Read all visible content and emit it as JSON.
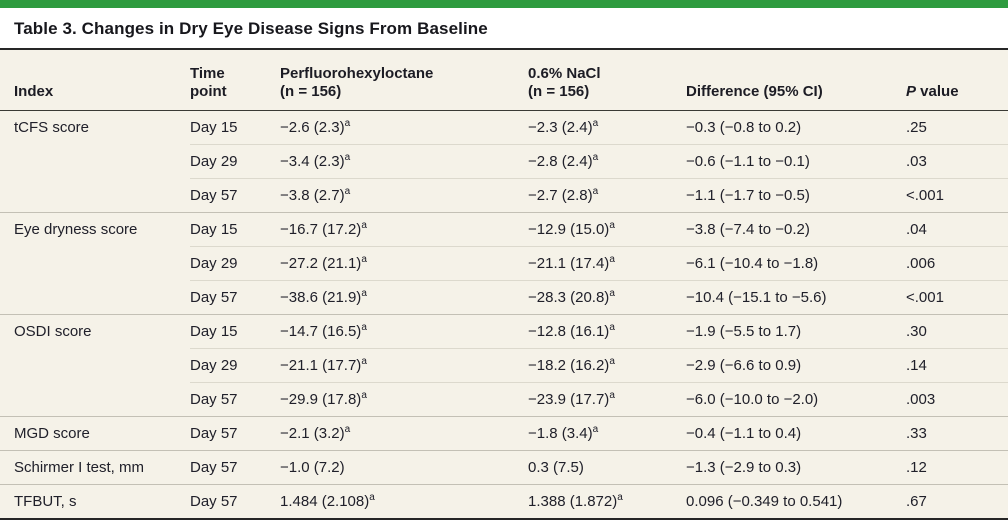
{
  "page": {
    "accent_color": "#2e9b3f",
    "table_background": "#f5f2e8",
    "rule_color": "#262626"
  },
  "table": {
    "title": "Table 3. Changes in Dry Eye Disease Signs From Baseline",
    "columns": {
      "index": "Index",
      "time_point": [
        "Time",
        "point"
      ],
      "drug": [
        "Perfluorohexyloctane",
        "(n = 156)"
      ],
      "saline": [
        "0.6% NaCl",
        "(n = 156)"
      ],
      "difference": "Difference (95% CI)",
      "p_value": {
        "italic": "P",
        "rest": " value"
      }
    },
    "footnote_marker": "a",
    "rows": [
      {
        "index": "tCFS score",
        "group_start": true,
        "time": "Day 15",
        "drug": "−2.6 (2.3)",
        "drug_sup": "a",
        "saline": "−2.3 (2.4)",
        "saline_sup": "a",
        "difference": "−0.3 (−0.8 to 0.2)",
        "p_value": ".25"
      },
      {
        "index": "",
        "group_start": false,
        "time": "Day 29",
        "drug": "−3.4 (2.3)",
        "drug_sup": "a",
        "saline": "−2.8 (2.4)",
        "saline_sup": "a",
        "difference": "−0.6 (−1.1 to −0.1)",
        "p_value": ".03"
      },
      {
        "index": "",
        "group_start": false,
        "time": "Day 57",
        "drug": "−3.8 (2.7)",
        "drug_sup": "a",
        "saline": "−2.7 (2.8)",
        "saline_sup": "a",
        "difference": "−1.1 (−1.7 to −0.5)",
        "p_value": "<.001"
      },
      {
        "index": "Eye dryness score",
        "group_start": true,
        "time": "Day 15",
        "drug": "−16.7 (17.2)",
        "drug_sup": "a",
        "saline": "−12.9 (15.0)",
        "saline_sup": "a",
        "difference": "−3.8 (−7.4 to −0.2)",
        "p_value": ".04"
      },
      {
        "index": "",
        "group_start": false,
        "time": "Day 29",
        "drug": "−27.2 (21.1)",
        "drug_sup": "a",
        "saline": "−21.1 (17.4)",
        "saline_sup": "a",
        "difference": "−6.1 (−10.4 to −1.8)",
        "p_value": ".006"
      },
      {
        "index": "",
        "group_start": false,
        "time": "Day 57",
        "drug": "−38.6 (21.9)",
        "drug_sup": "a",
        "saline": "−28.3 (20.8)",
        "saline_sup": "a",
        "difference": "−10.4 (−15.1 to −5.6)",
        "p_value": "<.001"
      },
      {
        "index": "OSDI score",
        "group_start": true,
        "time": "Day 15",
        "drug": "−14.7 (16.5)",
        "drug_sup": "a",
        "saline": "−12.8 (16.1)",
        "saline_sup": "a",
        "difference": "−1.9 (−5.5 to 1.7)",
        "p_value": ".30"
      },
      {
        "index": "",
        "group_start": false,
        "time": "Day 29",
        "drug": "−21.1 (17.7)",
        "drug_sup": "a",
        "saline": "−18.2 (16.2)",
        "saline_sup": "a",
        "difference": "−2.9 (−6.6 to 0.9)",
        "p_value": ".14"
      },
      {
        "index": "",
        "group_start": false,
        "time": "Day 57",
        "drug": "−29.9 (17.8)",
        "drug_sup": "a",
        "saline": "−23.9 (17.7)",
        "saline_sup": "a",
        "difference": "−6.0 (−10.0 to −2.0)",
        "p_value": ".003"
      },
      {
        "index": "MGD score",
        "group_start": true,
        "time": "Day 57",
        "drug": "−2.1 (3.2)",
        "drug_sup": "a",
        "saline": "−1.8 (3.4)",
        "saline_sup": "a",
        "difference": "−0.4 (−1.1 to 0.4)",
        "p_value": ".33"
      },
      {
        "index": "Schirmer I test, mm",
        "group_start": true,
        "time": "Day 57",
        "drug": "−1.0 (7.2)",
        "drug_sup": "",
        "saline": "0.3 (7.5)",
        "saline_sup": "",
        "difference": "−1.3 (−2.9 to 0.3)",
        "p_value": ".12"
      },
      {
        "index": "TFBUT, s",
        "group_start": true,
        "time": "Day 57",
        "drug": "1.484 (2.108)",
        "drug_sup": "a",
        "saline": "1.388 (1.872)",
        "saline_sup": "a",
        "difference": "0.096 (−0.349 to 0.541)",
        "p_value": ".67"
      }
    ]
  }
}
